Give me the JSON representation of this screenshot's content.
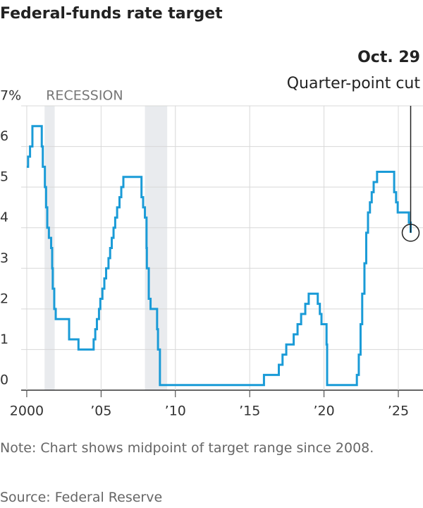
{
  "chart_data": {
    "type": "step",
    "title": "Federal-funds rate target",
    "annotation": {
      "title": "Oct. 29",
      "text": "Quarter-point cut"
    },
    "recession_label": "RECESSION",
    "recessions": [
      {
        "start": 2001.2,
        "end": 2001.88
      },
      {
        "start": 2007.95,
        "end": 2009.45
      }
    ],
    "recession_color": "#e9ebee",
    "x": [
      2000.0,
      2000.09,
      2000.22,
      2000.38,
      2001.01,
      2001.08,
      2001.22,
      2001.3,
      2001.38,
      2001.49,
      2001.64,
      2001.71,
      2001.75,
      2001.85,
      2001.95,
      2002.85,
      2003.48,
      2004.5,
      2004.61,
      2004.72,
      2004.86,
      2004.95,
      2005.09,
      2005.22,
      2005.34,
      2005.5,
      2005.61,
      2005.72,
      2005.84,
      2005.95,
      2006.08,
      2006.24,
      2006.36,
      2006.5,
      2007.72,
      2007.83,
      2007.95,
      2008.06,
      2008.08,
      2008.21,
      2008.33,
      2008.77,
      2008.83,
      2008.96,
      2015.96,
      2016.96,
      2017.21,
      2017.46,
      2017.96,
      2018.22,
      2018.46,
      2018.74,
      2018.97,
      2019.58,
      2019.72,
      2019.83,
      2020.17,
      2020.21,
      2022.21,
      2022.34,
      2022.46,
      2022.57,
      2022.72,
      2022.84,
      2022.96,
      2023.09,
      2023.21,
      2023.34,
      2023.57,
      2024.72,
      2024.85,
      2024.96,
      2025.71,
      2025.83
    ],
    "series": [
      {
        "name": "Federal-funds rate target",
        "color": "#1a9bd7",
        "values": [
          5.5,
          5.75,
          6.0,
          6.5,
          6.0,
          5.5,
          5.0,
          4.5,
          4.0,
          3.75,
          3.5,
          3.0,
          2.5,
          2.0,
          1.75,
          1.25,
          1.0,
          1.25,
          1.5,
          1.75,
          2.0,
          2.25,
          2.5,
          2.75,
          3.0,
          3.25,
          3.5,
          3.75,
          4.0,
          4.25,
          4.5,
          4.75,
          5.0,
          5.25,
          4.75,
          4.5,
          4.25,
          3.5,
          3.0,
          2.25,
          2.0,
          1.5,
          1.0,
          0.125,
          0.375,
          0.625,
          0.875,
          1.125,
          1.375,
          1.625,
          1.875,
          2.125,
          2.375,
          2.125,
          1.875,
          1.625,
          1.125,
          0.125,
          0.375,
          0.875,
          1.625,
          2.375,
          3.125,
          3.875,
          4.375,
          4.625,
          4.875,
          5.125,
          5.375,
          4.875,
          4.625,
          4.375,
          4.125,
          3.875
        ]
      }
    ],
    "xlim": [
      1998.2,
      2026.66
    ],
    "ylim": [
      0,
      7
    ],
    "xticks": [
      2000,
      {
        "value": 2005,
        "label": "’05"
      },
      {
        "value": 2010,
        "label": "’10"
      },
      {
        "value": 2015,
        "label": "’15"
      },
      {
        "value": 2020,
        "label": "’20"
      },
      {
        "value": 2025,
        "label": "’25"
      }
    ],
    "yticks": [
      0,
      1,
      2,
      3,
      4,
      5,
      6,
      {
        "value": 7,
        "label": "7%"
      }
    ],
    "grid": true,
    "note": "Note: Chart shows midpoint of target range since 2008.",
    "source": "Source: Federal Reserve"
  }
}
